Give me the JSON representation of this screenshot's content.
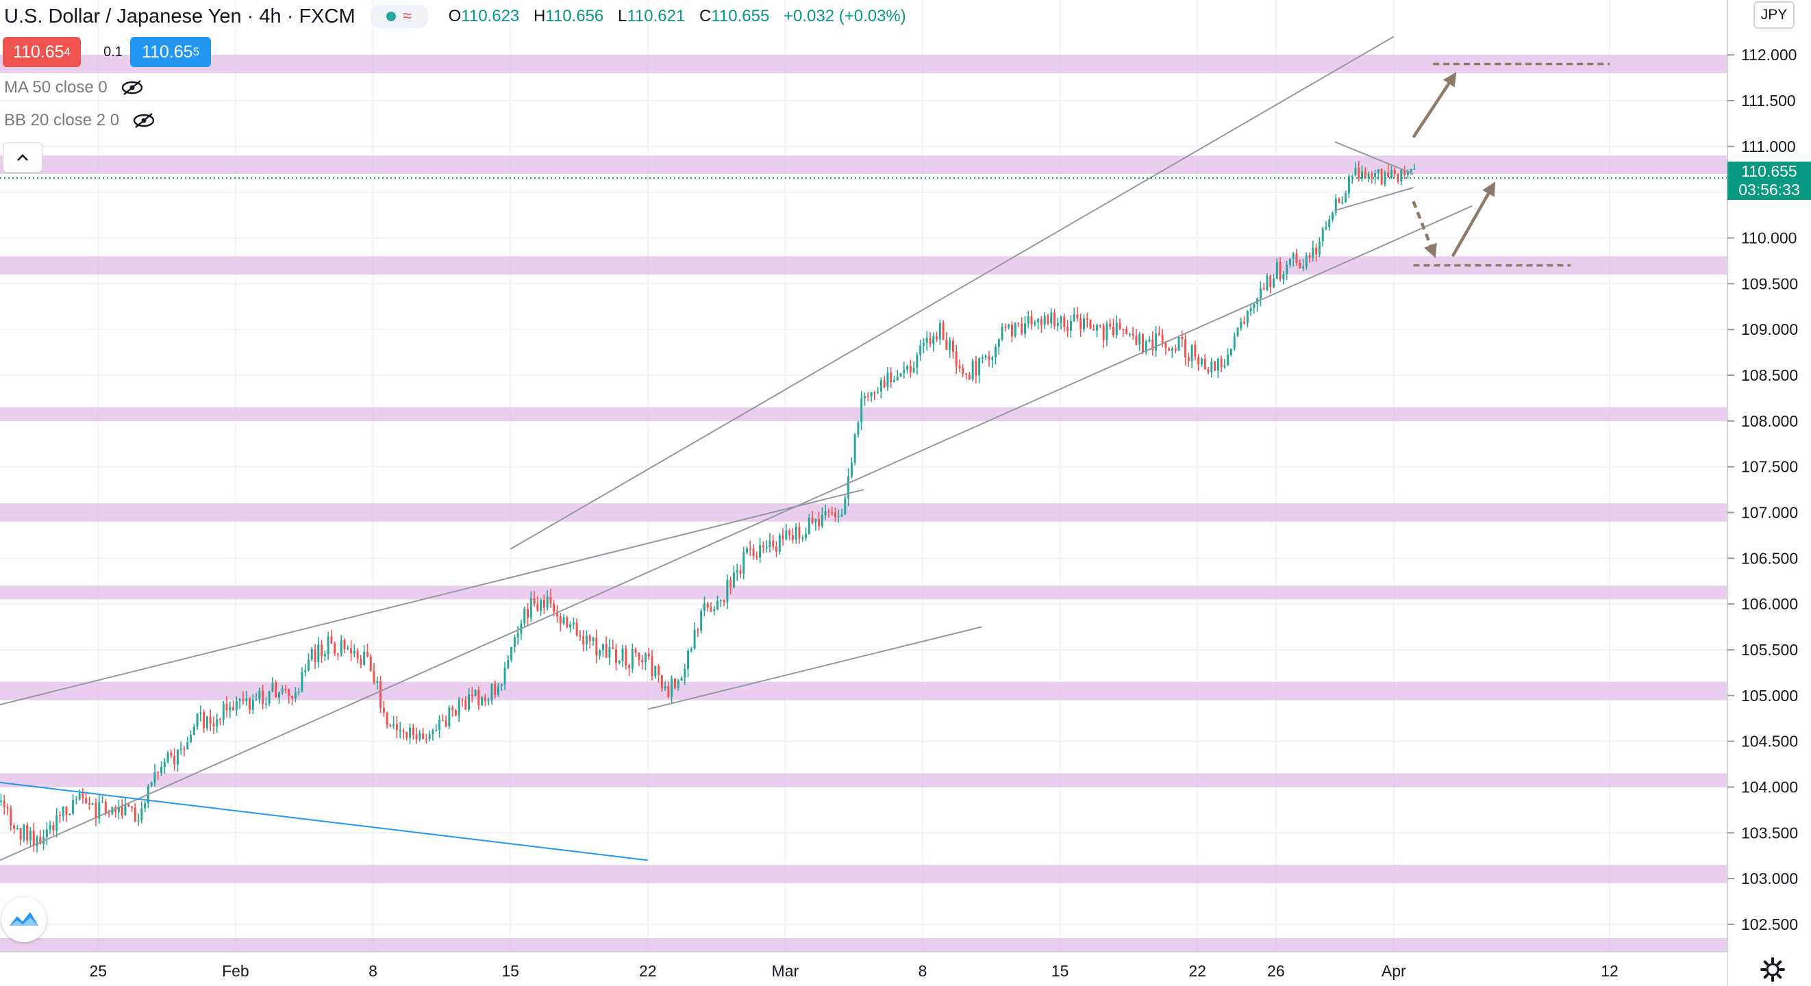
{
  "header": {
    "symbol_title": "U.S. Dollar / Japanese Yen",
    "interval": "4h",
    "exchange": "FXCM",
    "ohlc": {
      "o": "110.623",
      "h": "110.656",
      "l": "110.621",
      "c": "110.655",
      "change": "+0.032 (+0.03%)"
    },
    "ohlc_keys": {
      "o": "O",
      "h": "H",
      "l": "L",
      "c": "C"
    }
  },
  "trade": {
    "sell_main": "110.65",
    "sell_sup": "4",
    "spread": "0.1",
    "buy_main": "110.65",
    "buy_sup": "5",
    "sell_color": "#ef5350",
    "buy_color": "#2196f3"
  },
  "indicators": [
    {
      "label": "MA 50 close 0",
      "icon": "eye-off-icon"
    },
    {
      "label": "BB 20 close 2 0",
      "icon": "eye-off-icon"
    }
  ],
  "currency": "JPY",
  "last_price": {
    "value": "110.655",
    "countdown": "03:56:33",
    "color": "#089981"
  },
  "chart_data": {
    "type": "candlestick",
    "title": "U.S. Dollar / Japanese Yen · 4h · FXCM",
    "y_range": [
      102.2,
      112.6
    ],
    "y_ticks": [
      102.5,
      103.0,
      103.5,
      104.0,
      104.5,
      105.0,
      105.5,
      106.0,
      106.5,
      107.0,
      107.5,
      108.0,
      108.5,
      109.0,
      109.5,
      110.0,
      110.5,
      111.0,
      111.5,
      112.0
    ],
    "y_tick_labels": [
      "102.500",
      "103.000",
      "103.500",
      "104.000",
      "104.500",
      "105.000",
      "105.500",
      "106.000",
      "106.500",
      "107.000",
      "107.500",
      "108.000",
      "108.500",
      "109.000",
      "109.500",
      "110.000",
      "110.500",
      "111.000",
      "111.500",
      "112.000"
    ],
    "x_domain": [
      "2021-01-20",
      "2021-04-18"
    ],
    "x_ticks": [
      {
        "label": "25",
        "date": "2021-01-25"
      },
      {
        "label": "Feb",
        "date": "2021-02-01"
      },
      {
        "label": "8",
        "date": "2021-02-08"
      },
      {
        "label": "15",
        "date": "2021-02-15"
      },
      {
        "label": "22",
        "date": "2021-02-22"
      },
      {
        "label": "Mar",
        "date": "2021-03-01"
      },
      {
        "label": "8",
        "date": "2021-03-08"
      },
      {
        "label": "15",
        "date": "2021-03-15"
      },
      {
        "label": "22",
        "date": "2021-03-22"
      },
      {
        "label": "26",
        "date": "2021-03-26"
      },
      {
        "label": "Apr",
        "date": "2021-04-01"
      },
      {
        "label": "12",
        "date": "2021-04-12"
      }
    ],
    "price_path": [
      [
        "2021-01-20",
        103.85
      ],
      [
        "2021-01-21",
        103.55
      ],
      [
        "2021-01-22",
        103.45
      ],
      [
        "2021-01-23",
        103.65
      ],
      [
        "2021-01-24",
        103.85
      ],
      [
        "2021-01-25",
        103.75
      ],
      [
        "2021-01-26",
        103.8
      ],
      [
        "2021-01-27",
        103.65
      ],
      [
        "2021-01-28",
        104.2
      ],
      [
        "2021-01-29",
        104.3
      ],
      [
        "2021-01-30",
        104.7
      ],
      [
        "2021-01-31",
        104.75
      ],
      [
        "2021-02-01",
        104.9
      ],
      [
        "2021-02-02",
        104.95
      ],
      [
        "2021-02-03",
        105.05
      ],
      [
        "2021-02-04",
        105.0
      ],
      [
        "2021-02-05",
        105.45
      ],
      [
        "2021-02-06",
        105.55
      ],
      [
        "2021-02-07",
        105.55
      ],
      [
        "2021-02-08",
        105.3
      ],
      [
        "2021-02-09",
        104.6
      ],
      [
        "2021-02-10",
        104.55
      ],
      [
        "2021-02-11",
        104.6
      ],
      [
        "2021-02-12",
        104.8
      ],
      [
        "2021-02-13",
        104.95
      ],
      [
        "2021-02-14",
        104.98
      ],
      [
        "2021-02-15",
        105.35
      ],
      [
        "2021-02-16",
        105.95
      ],
      [
        "2021-02-17",
        106.05
      ],
      [
        "2021-02-18",
        105.75
      ],
      [
        "2021-02-19",
        105.6
      ],
      [
        "2021-02-20",
        105.45
      ],
      [
        "2021-02-21",
        105.4
      ],
      [
        "2021-02-22",
        105.45
      ],
      [
        "2021-02-23",
        105.0
      ],
      [
        "2021-02-24",
        105.3
      ],
      [
        "2021-02-25",
        105.95
      ],
      [
        "2021-02-26",
        106.1
      ],
      [
        "2021-02-27",
        106.5
      ],
      [
        "2021-02-28",
        106.6
      ],
      [
        "2021-03-01",
        106.7
      ],
      [
        "2021-03-02",
        106.8
      ],
      [
        "2021-03-03",
        106.95
      ],
      [
        "2021-03-04",
        107.0
      ],
      [
        "2021-03-05",
        108.2
      ],
      [
        "2021-03-06",
        108.4
      ],
      [
        "2021-03-07",
        108.5
      ],
      [
        "2021-03-08",
        108.75
      ],
      [
        "2021-03-09",
        109.05
      ],
      [
        "2021-03-10",
        108.5
      ],
      [
        "2021-03-11",
        108.6
      ],
      [
        "2021-03-12",
        108.9
      ],
      [
        "2021-03-13",
        109.05
      ],
      [
        "2021-03-14",
        109.05
      ],
      [
        "2021-03-15",
        109.1
      ],
      [
        "2021-03-16",
        109.05
      ],
      [
        "2021-03-17",
        108.95
      ],
      [
        "2021-03-18",
        109.05
      ],
      [
        "2021-03-19",
        108.85
      ],
      [
        "2021-03-20",
        108.85
      ],
      [
        "2021-03-21",
        108.85
      ],
      [
        "2021-03-22",
        108.7
      ],
      [
        "2021-03-23",
        108.55
      ],
      [
        "2021-03-24",
        108.85
      ],
      [
        "2021-03-25",
        109.3
      ],
      [
        "2021-03-26",
        109.6
      ],
      [
        "2021-03-27",
        109.75
      ],
      [
        "2021-03-28",
        109.8
      ],
      [
        "2021-03-29",
        110.3
      ],
      [
        "2021-03-30",
        110.7
      ],
      [
        "2021-03-31",
        110.65
      ],
      [
        "2021-04-01",
        110.7
      ],
      [
        "2021-04-02",
        110.655
      ]
    ],
    "shaded_zones": [
      [
        111.8,
        112.0
      ],
      [
        110.7,
        110.9
      ],
      [
        109.6,
        109.8
      ],
      [
        108.0,
        108.15
      ],
      [
        106.9,
        107.1
      ],
      [
        106.05,
        106.2
      ],
      [
        104.95,
        105.15
      ],
      [
        104.0,
        104.15
      ],
      [
        102.95,
        103.15
      ],
      [
        102.2,
        102.35
      ]
    ],
    "zone_color": "#e1bee7",
    "trendlines": [
      {
        "from": [
          "2021-02-15",
          106.6
        ],
        "to": [
          "2021-04-01",
          112.2
        ],
        "color": "#9598a1"
      },
      {
        "from": [
          "2021-01-20",
          103.2
        ],
        "to": [
          "2021-04-05",
          110.35
        ],
        "color": "#9598a1"
      },
      {
        "from": [
          "2021-01-20",
          104.9
        ],
        "to": [
          "2021-03-05",
          107.25
        ],
        "color": "#9598a1"
      },
      {
        "from": [
          "2021-02-22",
          104.85
        ],
        "to": [
          "2021-03-11",
          105.75
        ],
        "color": "#9598a1"
      },
      {
        "from": [
          "2021-01-20",
          104.05
        ],
        "to": [
          "2021-02-22",
          103.2
        ],
        "color": "#2196f3"
      },
      {
        "from": [
          "2021-03-29",
          111.05
        ],
        "to": [
          "2021-04-02",
          110.7
        ],
        "color": "#9598a1"
      },
      {
        "from": [
          "2021-03-29",
          110.3
        ],
        "to": [
          "2021-04-02",
          110.55
        ],
        "color": "#9598a1"
      }
    ],
    "target_lines": [
      {
        "from": "2021-04-03",
        "to": "2021-04-12",
        "y": 111.9
      },
      {
        "from": "2021-04-02",
        "to": "2021-04-10",
        "y": 109.7
      }
    ],
    "arrows": [
      {
        "from": [
          "2021-04-02",
          111.1
        ],
        "to": [
          "2021-04-04",
          111.75
        ],
        "style": "solid"
      },
      {
        "from": [
          "2021-04-02",
          110.4
        ],
        "to": [
          "2021-04-03",
          109.85
        ],
        "style": "dashed"
      },
      {
        "from": [
          "2021-04-04",
          109.8
        ],
        "to": [
          "2021-04-06",
          110.55
        ],
        "style": "solid"
      }
    ],
    "arrow_color": "#8d7b68",
    "up_color": "#26a69a",
    "down_color": "#ef5350"
  }
}
